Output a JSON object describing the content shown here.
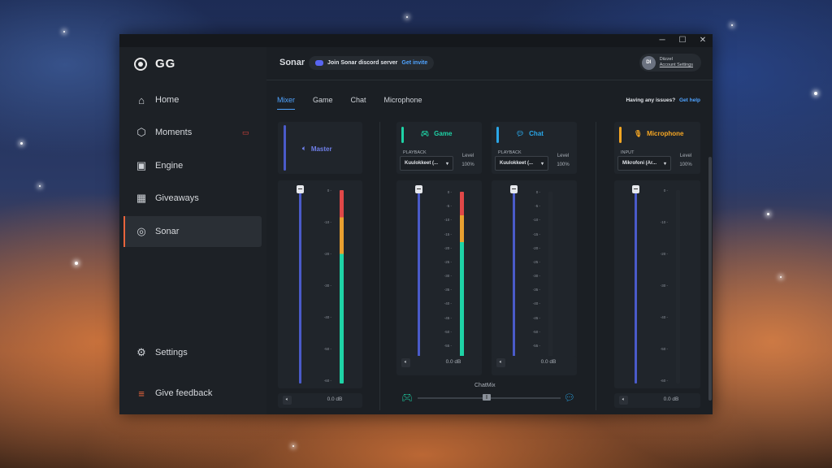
{
  "window": {
    "min_glyph": "─",
    "max_glyph": "☐",
    "close_glyph": "✕"
  },
  "sidebar": {
    "brand": "GG",
    "items": [
      {
        "label": "Home",
        "icon": "home-icon"
      },
      {
        "label": "Moments",
        "icon": "hexagon-icon"
      },
      {
        "label": "Engine",
        "icon": "chip-icon"
      },
      {
        "label": "Giveaways",
        "icon": "gift-icon"
      },
      {
        "label": "Sonar",
        "icon": "sonar-icon"
      }
    ],
    "settings_label": "Settings",
    "feedback_label": "Give feedback"
  },
  "topbar": {
    "title": "Sonar",
    "discord_text": "Join Sonar discord server",
    "discord_link": "Get invite",
    "user_initials": "DI",
    "user_name": "Diizzel",
    "account_link": "Account Settings"
  },
  "tabs": [
    "Mixer",
    "Game",
    "Chat",
    "Microphone"
  ],
  "help": {
    "text": "Having any issues?",
    "link": "Get help"
  },
  "scale": [
    "0",
    "-10",
    "-20",
    "-30",
    "-40",
    "-50",
    "-60"
  ],
  "scale_short": [
    "0",
    "-5",
    "-10",
    "-15",
    "-20",
    "-25",
    "-30",
    "-35",
    "-40",
    "-45",
    "-50",
    "-55",
    "-60"
  ],
  "master": {
    "name": "Master",
    "db": "0.0 dB",
    "volume": 1.0,
    "level": 1.0
  },
  "game": {
    "name": "Game",
    "sel_label": "PLAYBACK",
    "device": "Kuulokkeet (...",
    "level_label": "Level",
    "level_value": "100%",
    "db": "0.0 dB",
    "volume": 1.0,
    "level": 0.95
  },
  "chat": {
    "name": "Chat",
    "sel_label": "PLAYBACK",
    "device": "Kuulokkeet (...",
    "level_label": "Level",
    "level_value": "100%",
    "db": "0.0 dB",
    "volume": 1.0,
    "level": 0
  },
  "mic": {
    "name": "Microphone",
    "sel_label": "INPUT",
    "device": "Mikrofoni (Ar...",
    "level_label": "Level",
    "level_value": "100%",
    "db": "0.0 dB",
    "volume": 1.0,
    "level": 0
  },
  "chatmix": {
    "label": "ChatMix",
    "value": 0.5
  },
  "colors": {
    "game": "#1ed3a6",
    "chat": "#2aa7e8",
    "mic": "#f5a623",
    "master": "#4a5bc9",
    "accent": "#4fa3ff"
  }
}
